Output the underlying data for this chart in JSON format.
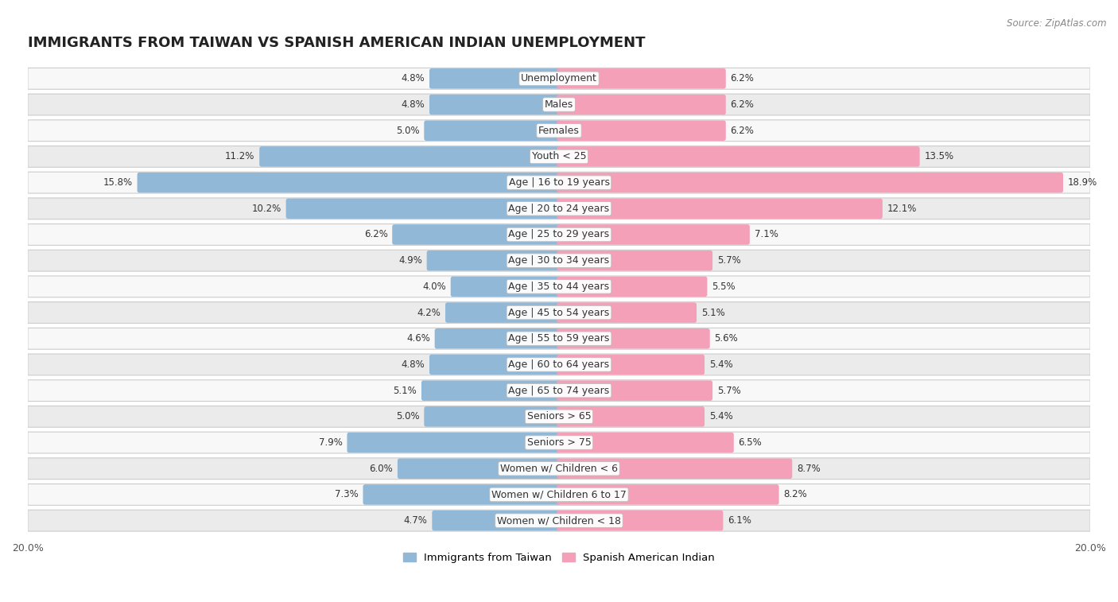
{
  "title": "IMMIGRANTS FROM TAIWAN VS SPANISH AMERICAN INDIAN UNEMPLOYMENT",
  "source": "Source: ZipAtlas.com",
  "categories": [
    "Unemployment",
    "Males",
    "Females",
    "Youth < 25",
    "Age | 16 to 19 years",
    "Age | 20 to 24 years",
    "Age | 25 to 29 years",
    "Age | 30 to 34 years",
    "Age | 35 to 44 years",
    "Age | 45 to 54 years",
    "Age | 55 to 59 years",
    "Age | 60 to 64 years",
    "Age | 65 to 74 years",
    "Seniors > 65",
    "Seniors > 75",
    "Women w/ Children < 6",
    "Women w/ Children 6 to 17",
    "Women w/ Children < 18"
  ],
  "taiwan_values": [
    4.8,
    4.8,
    5.0,
    11.2,
    15.8,
    10.2,
    6.2,
    4.9,
    4.0,
    4.2,
    4.6,
    4.8,
    5.1,
    5.0,
    7.9,
    6.0,
    7.3,
    4.7
  ],
  "spanish_values": [
    6.2,
    6.2,
    6.2,
    13.5,
    18.9,
    12.1,
    7.1,
    5.7,
    5.5,
    5.1,
    5.6,
    5.4,
    5.7,
    5.4,
    6.5,
    8.7,
    8.2,
    6.1
  ],
  "taiwan_color": "#92b8d8",
  "spanish_color": "#f4a0b8",
  "taiwan_label": "Immigrants from Taiwan",
  "spanish_label": "Spanish American Indian",
  "axis_limit": 20.0,
  "bg_color": "#ffffff",
  "row_color_light": "#f0f0f0",
  "row_color_dark": "#e0e0e0",
  "title_fontsize": 13,
  "label_fontsize": 9,
  "value_fontsize": 8.5,
  "axis_label_fontsize": 9
}
